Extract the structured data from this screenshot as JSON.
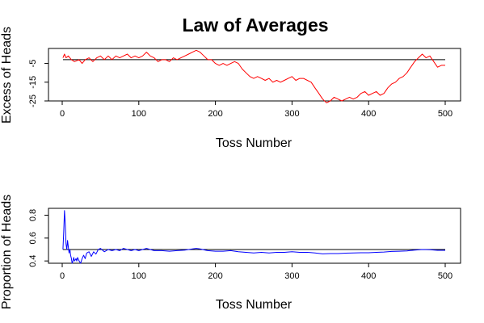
{
  "title": "Law of Averages",
  "chart_data": [
    {
      "type": "line",
      "ylabel": "Excess of Heads",
      "xlabel": "Toss Number",
      "xlim": [
        0,
        500
      ],
      "ylim": [
        -25,
        3
      ],
      "xticks": [
        0,
        100,
        200,
        300,
        400,
        500
      ],
      "yticks": [
        -5,
        -15,
        -25
      ],
      "reference_y": -3,
      "series": [
        {
          "color": "#ff0000",
          "points": [
            [
              1,
              -2
            ],
            [
              3,
              0
            ],
            [
              5,
              -2
            ],
            [
              8,
              -1
            ],
            [
              12,
              -3
            ],
            [
              16,
              -4
            ],
            [
              22,
              -3
            ],
            [
              26,
              -5
            ],
            [
              30,
              -3
            ],
            [
              35,
              -2
            ],
            [
              40,
              -4
            ],
            [
              45,
              -2
            ],
            [
              50,
              -1
            ],
            [
              55,
              -3
            ],
            [
              60,
              -1
            ],
            [
              65,
              -3
            ],
            [
              70,
              -1
            ],
            [
              75,
              -2
            ],
            [
              80,
              -1
            ],
            [
              85,
              0
            ],
            [
              90,
              -2
            ],
            [
              95,
              -1
            ],
            [
              100,
              -2
            ],
            [
              105,
              -1
            ],
            [
              110,
              1
            ],
            [
              115,
              -1
            ],
            [
              120,
              -2
            ],
            [
              125,
              -4
            ],
            [
              130,
              -3
            ],
            [
              135,
              -3
            ],
            [
              140,
              -4
            ],
            [
              145,
              -2
            ],
            [
              150,
              -3
            ],
            [
              155,
              -2
            ],
            [
              160,
              -1
            ],
            [
              165,
              0
            ],
            [
              170,
              1
            ],
            [
              175,
              2
            ],
            [
              180,
              1
            ],
            [
              185,
              -1
            ],
            [
              190,
              -3
            ],
            [
              195,
              -3
            ],
            [
              200,
              -5
            ],
            [
              205,
              -6
            ],
            [
              210,
              -5
            ],
            [
              215,
              -6
            ],
            [
              220,
              -5
            ],
            [
              225,
              -4
            ],
            [
              230,
              -5
            ],
            [
              235,
              -8
            ],
            [
              240,
              -10
            ],
            [
              245,
              -12
            ],
            [
              250,
              -13
            ],
            [
              255,
              -12
            ],
            [
              260,
              -13
            ],
            [
              265,
              -14
            ],
            [
              270,
              -13
            ],
            [
              275,
              -15
            ],
            [
              280,
              -14
            ],
            [
              285,
              -15
            ],
            [
              290,
              -14
            ],
            [
              295,
              -13
            ],
            [
              300,
              -12
            ],
            [
              305,
              -14
            ],
            [
              310,
              -13
            ],
            [
              315,
              -13
            ],
            [
              320,
              -14
            ],
            [
              325,
              -15
            ],
            [
              330,
              -18
            ],
            [
              335,
              -21
            ],
            [
              340,
              -24
            ],
            [
              345,
              -26
            ],
            [
              350,
              -25
            ],
            [
              355,
              -23
            ],
            [
              360,
              -24
            ],
            [
              365,
              -25
            ],
            [
              370,
              -24
            ],
            [
              375,
              -23
            ],
            [
              380,
              -24
            ],
            [
              385,
              -23
            ],
            [
              390,
              -21
            ],
            [
              395,
              -20
            ],
            [
              400,
              -22
            ],
            [
              405,
              -21
            ],
            [
              410,
              -20
            ],
            [
              415,
              -22
            ],
            [
              420,
              -21
            ],
            [
              425,
              -18
            ],
            [
              430,
              -16
            ],
            [
              435,
              -15
            ],
            [
              440,
              -13
            ],
            [
              445,
              -12
            ],
            [
              450,
              -10
            ],
            [
              455,
              -7
            ],
            [
              460,
              -4
            ],
            [
              465,
              -2
            ],
            [
              470,
              0
            ],
            [
              475,
              -2
            ],
            [
              480,
              -1
            ],
            [
              485,
              -4
            ],
            [
              490,
              -7
            ],
            [
              495,
              -6
            ],
            [
              500,
              -6
            ]
          ]
        }
      ]
    },
    {
      "type": "line",
      "ylabel": "Proportion of Heads",
      "xlabel": "Toss Number",
      "xlim": [
        0,
        500
      ],
      "ylim": [
        0.38,
        0.86
      ],
      "xticks": [
        0,
        100,
        200,
        300,
        400,
        500
      ],
      "yticks": [
        0.4,
        0.6,
        0.8
      ],
      "ytick_labels": [
        "0.4",
        "0.6",
        "0.8"
      ],
      "reference_y": 0.5,
      "series": [
        {
          "color": "#0000ff",
          "points": [
            [
              1,
              0.5
            ],
            [
              2,
              0.66
            ],
            [
              3,
              0.84
            ],
            [
              4,
              0.72
            ],
            [
              5,
              0.55
            ],
            [
              6,
              0.5
            ],
            [
              7,
              0.58
            ],
            [
              8,
              0.52
            ],
            [
              9,
              0.47
            ],
            [
              10,
              0.5
            ],
            [
              11,
              0.45
            ],
            [
              12,
              0.42
            ],
            [
              13,
              0.38
            ],
            [
              14,
              0.4
            ],
            [
              15,
              0.43
            ],
            [
              16,
              0.4
            ],
            [
              17,
              0.41
            ],
            [
              18,
              0.42
            ],
            [
              19,
              0.4
            ],
            [
              20,
              0.43
            ],
            [
              22,
              0.4
            ],
            [
              24,
              0.38
            ],
            [
              26,
              0.42
            ],
            [
              28,
              0.45
            ],
            [
              30,
              0.42
            ],
            [
              32,
              0.47
            ],
            [
              35,
              0.48
            ],
            [
              38,
              0.44
            ],
            [
              41,
              0.48
            ],
            [
              44,
              0.46
            ],
            [
              47,
              0.5
            ],
            [
              50,
              0.51
            ],
            [
              55,
              0.48
            ],
            [
              60,
              0.5
            ],
            [
              65,
              0.49
            ],
            [
              70,
              0.5
            ],
            [
              75,
              0.49
            ],
            [
              80,
              0.51
            ],
            [
              85,
              0.5
            ],
            [
              90,
              0.49
            ],
            [
              95,
              0.5
            ],
            [
              100,
              0.49
            ],
            [
              105,
              0.5
            ],
            [
              110,
              0.51
            ],
            [
              115,
              0.5
            ],
            [
              120,
              0.49
            ],
            [
              130,
              0.49
            ],
            [
              140,
              0.485
            ],
            [
              150,
              0.49
            ],
            [
              160,
              0.495
            ],
            [
              170,
              0.505
            ],
            [
              175,
              0.51
            ],
            [
              180,
              0.505
            ],
            [
              190,
              0.49
            ],
            [
              200,
              0.485
            ],
            [
              210,
              0.485
            ],
            [
              220,
              0.49
            ],
            [
              230,
              0.48
            ],
            [
              240,
              0.475
            ],
            [
              250,
              0.47
            ],
            [
              260,
              0.475
            ],
            [
              270,
              0.47
            ],
            [
              280,
              0.475
            ],
            [
              290,
              0.475
            ],
            [
              300,
              0.48
            ],
            [
              310,
              0.475
            ],
            [
              320,
              0.475
            ],
            [
              330,
              0.47
            ],
            [
              340,
              0.462
            ],
            [
              350,
              0.465
            ],
            [
              360,
              0.465
            ],
            [
              370,
              0.468
            ],
            [
              380,
              0.47
            ],
            [
              390,
              0.472
            ],
            [
              400,
              0.472
            ],
            [
              410,
              0.475
            ],
            [
              420,
              0.478
            ],
            [
              430,
              0.483
            ],
            [
              440,
              0.485
            ],
            [
              450,
              0.488
            ],
            [
              460,
              0.495
            ],
            [
              470,
              0.5
            ],
            [
              480,
              0.498
            ],
            [
              490,
              0.493
            ],
            [
              500,
              0.493
            ]
          ]
        }
      ]
    }
  ]
}
